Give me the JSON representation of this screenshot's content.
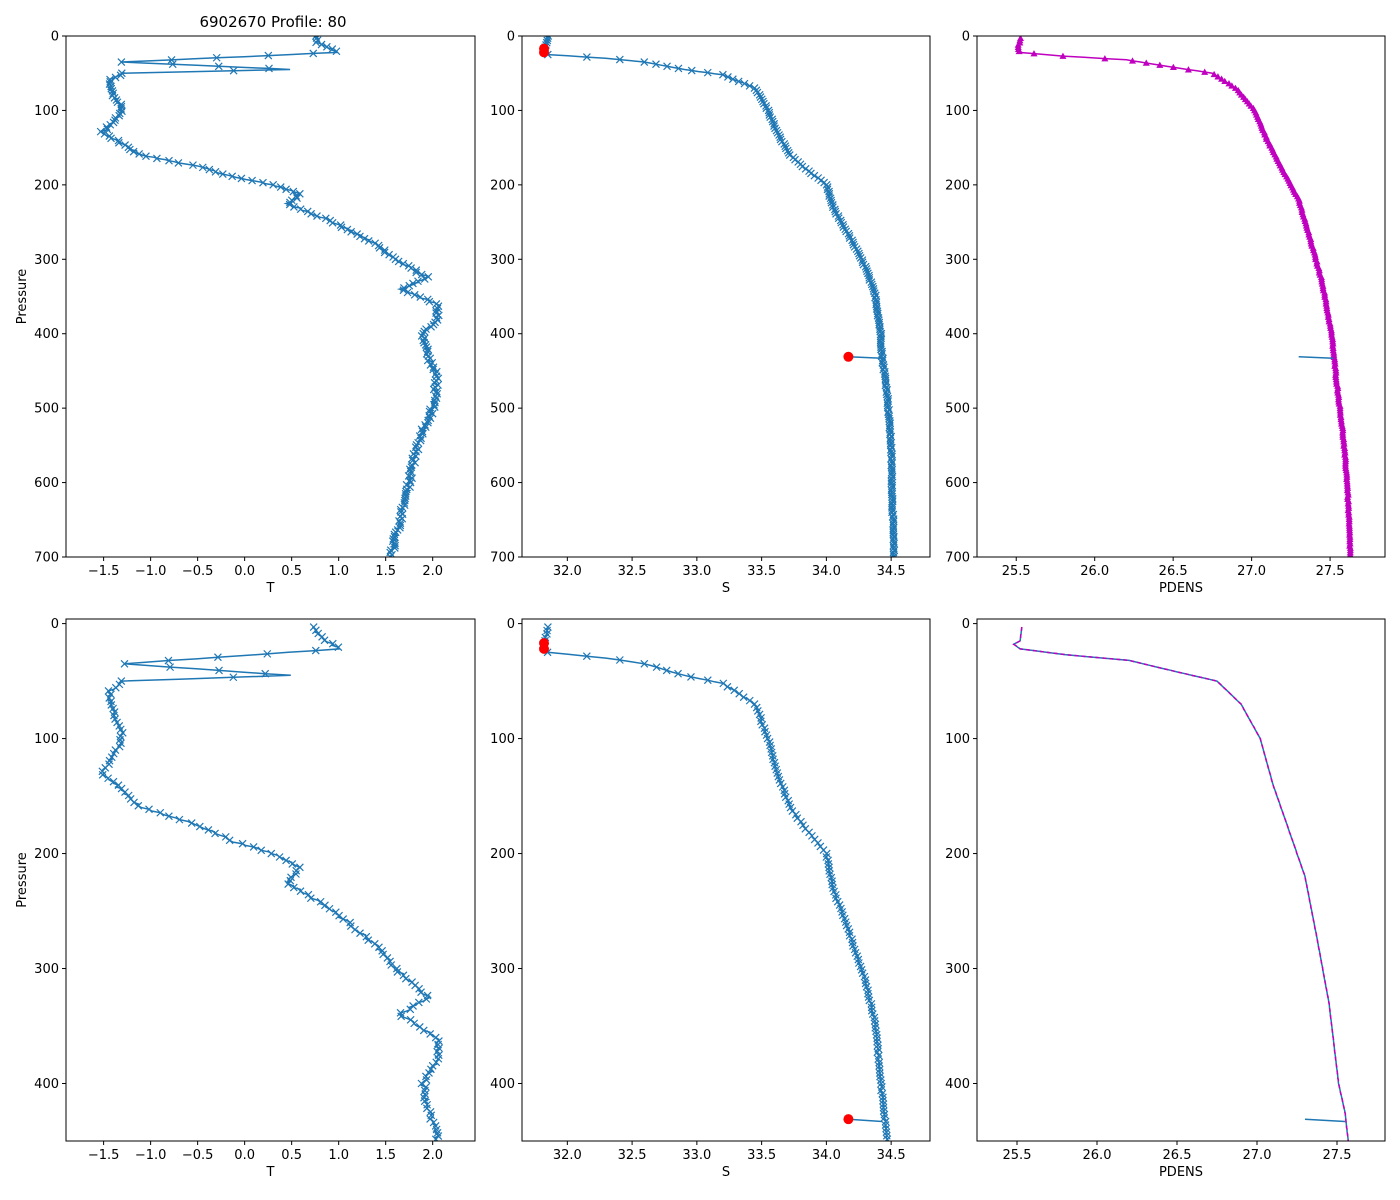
{
  "figure_title": "6902670 Profile: 80",
  "colors": {
    "line": "#1f77b4",
    "pdens": "#bf00bf",
    "flag": "#ff0000",
    "dash": "#d62728"
  },
  "chart_data": [
    {
      "id": "top-t",
      "type": "line",
      "marker": "x",
      "xlabel": "T",
      "ylabel": "Pressure",
      "xlim": [
        -1.9,
        2.45
      ],
      "ylim": [
        700,
        0
      ],
      "xticks": [
        -1.5,
        -1.0,
        -0.5,
        0.0,
        0.5,
        1.0,
        1.5,
        2.0
      ],
      "xtick_labels": [
        "−1.5",
        "−1.0",
        "−0.5",
        "0.0",
        "0.5",
        "1.0",
        "1.5",
        "2.0"
      ],
      "yticks": [
        0,
        100,
        200,
        300,
        400,
        500,
        600,
        700
      ],
      "ytick_labels": [
        "0",
        "100",
        "200",
        "300",
        "400",
        "500",
        "600",
        "700"
      ],
      "series": [
        {
          "name": "T",
          "points": [
            [
              0.75,
              0
            ],
            [
              0.78,
              10
            ],
            [
              1.0,
              22
            ],
            [
              -1.3,
              35
            ],
            [
              0.5,
              45
            ],
            [
              -1.3,
              50
            ],
            [
              -1.45,
              60
            ],
            [
              -1.4,
              80
            ],
            [
              -1.3,
              95
            ],
            [
              -1.35,
              110
            ],
            [
              -1.52,
              130
            ],
            [
              -1.3,
              145
            ],
            [
              -1.1,
              160
            ],
            [
              -0.5,
              175
            ],
            [
              -0.1,
              190
            ],
            [
              0.3,
              200
            ],
            [
              0.6,
              212
            ],
            [
              0.45,
              225
            ],
            [
              0.85,
              245
            ],
            [
              1.1,
              260
            ],
            [
              1.4,
              280
            ],
            [
              1.6,
              300
            ],
            [
              1.95,
              325
            ],
            [
              1.65,
              340
            ],
            [
              2.05,
              360
            ],
            [
              2.05,
              380
            ],
            [
              1.9,
              400
            ],
            [
              1.95,
              430
            ],
            [
              2.05,
              460
            ],
            [
              2.0,
              500
            ],
            [
              1.9,
              530
            ],
            [
              1.82,
              560
            ],
            [
              1.75,
              600
            ],
            [
              1.65,
              650
            ],
            [
              1.55,
              700
            ]
          ]
        }
      ]
    },
    {
      "id": "top-s",
      "type": "line",
      "marker": "x",
      "xlabel": "S",
      "ylabel": "",
      "xlim": [
        31.65,
        34.8
      ],
      "ylim": [
        700,
        0
      ],
      "xticks": [
        32.0,
        32.5,
        33.0,
        33.5,
        34.0,
        34.5
      ],
      "xtick_labels": [
        "32.0",
        "32.5",
        "33.0",
        "33.5",
        "34.0",
        "34.5"
      ],
      "yticks": [
        0,
        100,
        200,
        300,
        400,
        500,
        600,
        700
      ],
      "ytick_labels": [
        "0",
        "100",
        "200",
        "300",
        "400",
        "500",
        "600",
        "700"
      ],
      "series": [
        {
          "name": "S",
          "points": [
            [
              31.85,
              0
            ],
            [
              31.83,
              15
            ],
            [
              31.8,
              20
            ],
            [
              31.85,
              25
            ],
            [
              32.3,
              30
            ],
            [
              32.6,
              35
            ],
            [
              32.9,
              45
            ],
            [
              33.2,
              52
            ],
            [
              33.45,
              70
            ],
            [
              33.55,
              100
            ],
            [
              33.62,
              130
            ],
            [
              33.72,
              160
            ],
            [
              33.85,
              180
            ],
            [
              34.0,
              200
            ],
            [
              34.05,
              230
            ],
            [
              34.18,
              270
            ],
            [
              34.3,
              310
            ],
            [
              34.38,
              350
            ],
            [
              34.42,
              400
            ],
            [
              34.43,
              430
            ],
            [
              34.47,
              480
            ],
            [
              34.5,
              550
            ],
            [
              34.52,
              700
            ]
          ]
        },
        {
          "name": "spike",
          "points": [
            [
              34.17,
              431
            ],
            [
              34.43,
              433
            ]
          ]
        }
      ],
      "flagged": [
        [
          31.82,
          17
        ],
        [
          31.82,
          22
        ],
        [
          34.17,
          431
        ]
      ]
    },
    {
      "id": "top-pdens",
      "type": "line",
      "marker": "^",
      "xlabel": "PDENS",
      "ylabel": "",
      "xlim": [
        25.25,
        27.85
      ],
      "ylim": [
        700,
        0
      ],
      "xticks": [
        25.5,
        26.0,
        26.5,
        27.0,
        27.5
      ],
      "xtick_labels": [
        "25.5",
        "26.0",
        "26.5",
        "27.0",
        "27.5"
      ],
      "yticks": [
        0,
        100,
        200,
        300,
        400,
        500,
        600,
        700
      ],
      "ytick_labels": [
        "0",
        "100",
        "200",
        "300",
        "400",
        "500",
        "600",
        "700"
      ],
      "series": [
        {
          "name": "PDENS",
          "points": [
            [
              25.53,
              3
            ],
            [
              25.51,
              15
            ],
            [
              25.52,
              22
            ],
            [
              25.8,
              27
            ],
            [
              26.2,
              32
            ],
            [
              26.5,
              42
            ],
            [
              26.75,
              50
            ],
            [
              26.9,
              70
            ],
            [
              27.02,
              100
            ],
            [
              27.1,
              140
            ],
            [
              27.2,
              180
            ],
            [
              27.3,
              220
            ],
            [
              27.37,
              270
            ],
            [
              27.45,
              330
            ],
            [
              27.51,
              400
            ],
            [
              27.54,
              460
            ],
            [
              27.58,
              530
            ],
            [
              27.61,
              600
            ],
            [
              27.63,
              700
            ]
          ]
        },
        {
          "name": "spike",
          "points": [
            [
              27.3,
              431
            ],
            [
              27.52,
              433
            ]
          ]
        }
      ]
    },
    {
      "id": "bottom-t",
      "type": "line",
      "marker": "x",
      "xlabel": "T",
      "ylabel": "Pressure",
      "xlim": [
        -1.9,
        2.45
      ],
      "ylim": [
        450,
        -4
      ],
      "xticks": [
        -1.5,
        -1.0,
        -0.5,
        0.0,
        0.5,
        1.0,
        1.5,
        2.0
      ],
      "xtick_labels": [
        "−1.5",
        "−1.0",
        "−0.5",
        "0.0",
        "0.5",
        "1.0",
        "1.5",
        "2.0"
      ],
      "yticks": [
        0,
        100,
        200,
        300,
        400
      ],
      "ytick_labels": [
        "0",
        "100",
        "200",
        "300",
        "400"
      ],
      "series": [
        {
          "name": "T",
          "points": [
            [
              0.72,
              3
            ],
            [
              0.78,
              10
            ],
            [
              1.0,
              22
            ],
            [
              -1.3,
              35
            ],
            [
              0.5,
              45
            ],
            [
              -1.3,
              50
            ],
            [
              -1.45,
              60
            ],
            [
              -1.4,
              80
            ],
            [
              -1.3,
              95
            ],
            [
              -1.35,
              110
            ],
            [
              -1.52,
              130
            ],
            [
              -1.3,
              145
            ],
            [
              -1.1,
              160
            ],
            [
              -0.5,
              175
            ],
            [
              -0.1,
              190
            ],
            [
              0.3,
              200
            ],
            [
              0.6,
              212
            ],
            [
              0.45,
              225
            ],
            [
              0.85,
              245
            ],
            [
              1.1,
              260
            ],
            [
              1.4,
              280
            ],
            [
              1.6,
              300
            ],
            [
              1.95,
              325
            ],
            [
              1.65,
              340
            ],
            [
              2.05,
              360
            ],
            [
              2.05,
              380
            ],
            [
              1.9,
              400
            ],
            [
              1.95,
              420
            ],
            [
              2.02,
              440
            ],
            [
              2.05,
              450
            ]
          ]
        }
      ]
    },
    {
      "id": "bottom-s",
      "type": "line",
      "marker": "x",
      "xlabel": "S",
      "ylabel": "",
      "xlim": [
        31.65,
        34.8
      ],
      "ylim": [
        450,
        -4
      ],
      "xticks": [
        32.0,
        32.5,
        33.0,
        33.5,
        34.0,
        34.5
      ],
      "xtick_labels": [
        "32.0",
        "32.5",
        "33.0",
        "33.5",
        "34.0",
        "34.5"
      ],
      "yticks": [
        0,
        100,
        200,
        300,
        400
      ],
      "ytick_labels": [
        "0",
        "100",
        "200",
        "300",
        "400"
      ],
      "series": [
        {
          "name": "S",
          "points": [
            [
              31.85,
              3
            ],
            [
              31.83,
              15
            ],
            [
              31.8,
              20
            ],
            [
              31.85,
              25
            ],
            [
              32.3,
              30
            ],
            [
              32.6,
              35
            ],
            [
              32.9,
              45
            ],
            [
              33.2,
              52
            ],
            [
              33.45,
              70
            ],
            [
              33.55,
              100
            ],
            [
              33.62,
              130
            ],
            [
              33.72,
              160
            ],
            [
              33.85,
              180
            ],
            [
              34.0,
              200
            ],
            [
              34.05,
              230
            ],
            [
              34.18,
              270
            ],
            [
              34.3,
              310
            ],
            [
              34.38,
              350
            ],
            [
              34.42,
              400
            ],
            [
              34.45,
              430
            ],
            [
              34.47,
              450
            ]
          ]
        },
        {
          "name": "spike",
          "points": [
            [
              34.17,
              431
            ],
            [
              34.43,
              433
            ]
          ]
        }
      ],
      "flagged": [
        [
          31.82,
          17
        ],
        [
          31.82,
          22
        ],
        [
          34.17,
          431
        ]
      ]
    },
    {
      "id": "bottom-pdens",
      "type": "line",
      "marker": "none",
      "xlabel": "PDENS",
      "ylabel": "",
      "xlim": [
        25.25,
        27.8
      ],
      "ylim": [
        450,
        -4
      ],
      "xticks": [
        25.5,
        26.0,
        26.5,
        27.0,
        27.5
      ],
      "xtick_labels": [
        "25.5",
        "26.0",
        "26.5",
        "27.0",
        "27.5"
      ],
      "yticks": [
        0,
        100,
        200,
        300,
        400
      ],
      "ytick_labels": [
        "0",
        "100",
        "200",
        "300",
        "400"
      ],
      "series": [
        {
          "name": "PDENS",
          "points": [
            [
              25.53,
              3
            ],
            [
              25.52,
              15
            ],
            [
              25.48,
              18
            ],
            [
              25.52,
              22
            ],
            [
              25.8,
              27
            ],
            [
              26.2,
              32
            ],
            [
              26.5,
              42
            ],
            [
              26.75,
              50
            ],
            [
              26.9,
              70
            ],
            [
              27.02,
              100
            ],
            [
              27.1,
              140
            ],
            [
              27.2,
              180
            ],
            [
              27.3,
              220
            ],
            [
              27.37,
              270
            ],
            [
              27.45,
              330
            ],
            [
              27.51,
              400
            ],
            [
              27.55,
              425
            ],
            [
              27.57,
              450
            ]
          ]
        },
        {
          "name": "spike",
          "points": [
            [
              27.3,
              431
            ],
            [
              27.55,
              433
            ]
          ]
        }
      ],
      "dashed": true
    }
  ]
}
